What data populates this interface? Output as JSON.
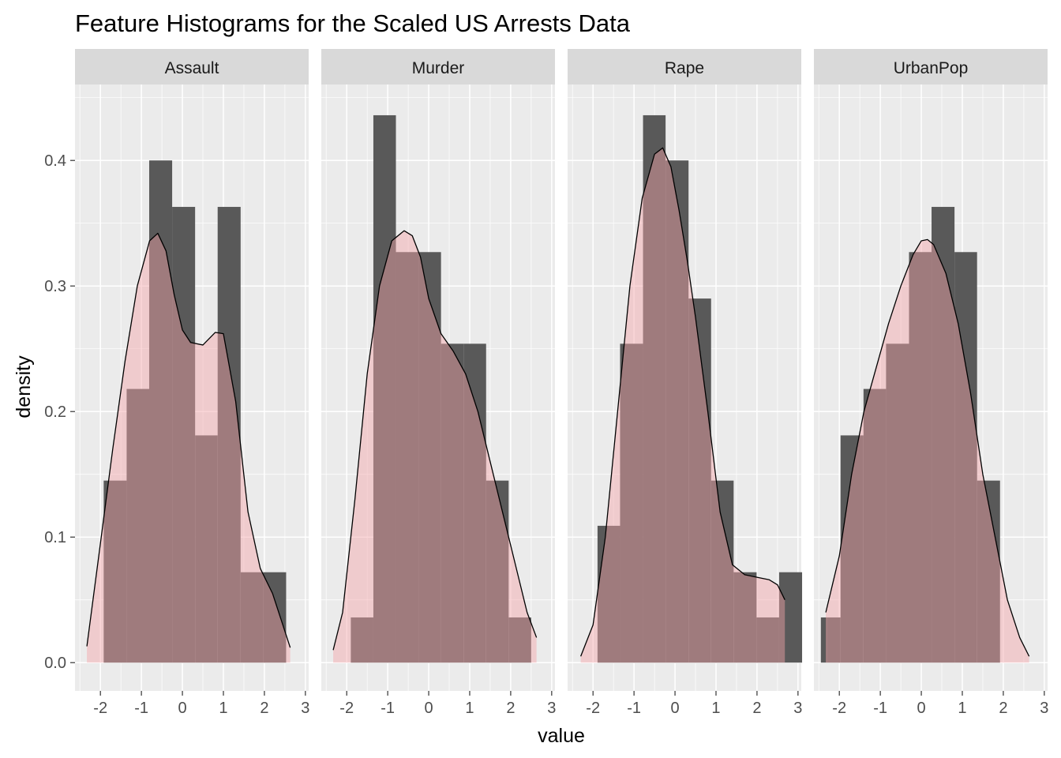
{
  "chart_data": {
    "type": "histogram",
    "title": "Feature Histograms for the Scaled US Arrests Data",
    "xlabel": "value",
    "ylabel": "density",
    "xlim": [
      -2.62,
      3.08
    ],
    "ylim": [
      -0.0225,
      0.4605
    ],
    "x_ticks": [
      -2,
      -1,
      0,
      1,
      2,
      3
    ],
    "x_tick_labels": [
      "-2",
      "-1",
      "0",
      "1",
      "2",
      "3"
    ],
    "y_ticks": [
      0.0,
      0.1,
      0.2,
      0.3,
      0.4
    ],
    "y_tick_labels": [
      "0.0",
      "0.1",
      "0.2",
      "0.3",
      "0.4"
    ],
    "grid": true,
    "histogram_fill": "#595959",
    "density_fill": "#f4a3a8",
    "density_fill_opacity": 0.45,
    "density_line_color": "#000000",
    "panel_background": "#ebebeb",
    "strip_background": "#d9d9d9",
    "panels": [
      {
        "name": "Assault",
        "bins": [
          {
            "x0": -1.92,
            "x1": -1.36,
            "density": 0.145
          },
          {
            "x0": -1.36,
            "x1": -0.81,
            "density": 0.218
          },
          {
            "x0": -0.81,
            "x1": -0.25,
            "density": 0.4
          },
          {
            "x0": -0.25,
            "x1": 0.31,
            "density": 0.363
          },
          {
            "x0": 0.31,
            "x1": 0.86,
            "density": 0.181
          },
          {
            "x0": 0.86,
            "x1": 1.42,
            "density": 0.363
          },
          {
            "x0": 1.42,
            "x1": 1.98,
            "density": 0.072
          },
          {
            "x0": 1.98,
            "x1": 2.53,
            "density": 0.072
          }
        ],
        "density_x": [
          -2.33,
          -2.0,
          -1.7,
          -1.4,
          -1.1,
          -0.8,
          -0.6,
          -0.4,
          -0.2,
          0.0,
          0.2,
          0.5,
          0.8,
          1.0,
          1.3,
          1.6,
          1.9,
          2.2,
          2.5,
          2.63
        ],
        "density_y": [
          0.013,
          0.095,
          0.17,
          0.24,
          0.3,
          0.336,
          0.342,
          0.328,
          0.293,
          0.265,
          0.255,
          0.253,
          0.263,
          0.262,
          0.208,
          0.12,
          0.075,
          0.055,
          0.025,
          0.012
        ]
      },
      {
        "name": "Murder",
        "bins": [
          {
            "x0": -1.9,
            "x1": -1.35,
            "density": 0.036
          },
          {
            "x0": -1.35,
            "x1": -0.8,
            "density": 0.436
          },
          {
            "x0": -0.8,
            "x1": -0.25,
            "density": 0.327
          },
          {
            "x0": -0.25,
            "x1": 0.3,
            "density": 0.327
          },
          {
            "x0": 0.3,
            "x1": 0.85,
            "density": 0.254
          },
          {
            "x0": 0.85,
            "x1": 1.4,
            "density": 0.254
          },
          {
            "x0": 1.4,
            "x1": 1.95,
            "density": 0.145
          },
          {
            "x0": 1.95,
            "x1": 2.5,
            "density": 0.036
          }
        ],
        "density_x": [
          -2.33,
          -2.1,
          -1.8,
          -1.5,
          -1.2,
          -0.9,
          -0.6,
          -0.4,
          -0.2,
          0.0,
          0.3,
          0.6,
          0.9,
          1.2,
          1.5,
          1.8,
          2.1,
          2.4,
          2.63
        ],
        "density_y": [
          0.01,
          0.04,
          0.13,
          0.23,
          0.3,
          0.336,
          0.344,
          0.34,
          0.323,
          0.29,
          0.262,
          0.248,
          0.23,
          0.2,
          0.16,
          0.12,
          0.08,
          0.04,
          0.02
        ]
      },
      {
        "name": "Rape",
        "bins": [
          {
            "x0": -1.89,
            "x1": -1.34,
            "density": 0.109
          },
          {
            "x0": -1.34,
            "x1": -0.78,
            "density": 0.254
          },
          {
            "x0": -0.78,
            "x1": -0.23,
            "density": 0.436
          },
          {
            "x0": -0.23,
            "x1": 0.33,
            "density": 0.4
          },
          {
            "x0": 0.33,
            "x1": 0.88,
            "density": 0.29
          },
          {
            "x0": 0.88,
            "x1": 1.43,
            "density": 0.145
          },
          {
            "x0": 1.43,
            "x1": 1.99,
            "density": 0.072
          },
          {
            "x0": 1.99,
            "x1": 2.54,
            "density": 0.036
          },
          {
            "x0": 2.54,
            "x1": 3.1,
            "density": 0.072
          }
        ],
        "density_x": [
          -2.3,
          -2.0,
          -1.7,
          -1.4,
          -1.1,
          -0.8,
          -0.5,
          -0.3,
          -0.1,
          0.1,
          0.3,
          0.5,
          0.8,
          1.1,
          1.4,
          1.7,
          2.0,
          2.3,
          2.5,
          2.68
        ],
        "density_y": [
          0.005,
          0.03,
          0.1,
          0.2,
          0.3,
          0.37,
          0.405,
          0.41,
          0.395,
          0.36,
          0.32,
          0.275,
          0.2,
          0.12,
          0.078,
          0.07,
          0.068,
          0.066,
          0.062,
          0.05
        ]
      },
      {
        "name": "UrbanPop",
        "bins": [
          {
            "x0": -2.45,
            "x1": -2.3,
            "density": 0.036
          },
          {
            "x0": -2.3,
            "x1": -1.97,
            "density": 0.036
          },
          {
            "x0": -1.97,
            "x1": -1.41,
            "density": 0.181
          },
          {
            "x0": -1.41,
            "x1": -0.86,
            "density": 0.218
          },
          {
            "x0": -0.86,
            "x1": -0.3,
            "density": 0.254
          },
          {
            "x0": -0.3,
            "x1": 0.25,
            "density": 0.327
          },
          {
            "x0": 0.25,
            "x1": 0.81,
            "density": 0.363
          },
          {
            "x0": 0.81,
            "x1": 1.36,
            "density": 0.327
          },
          {
            "x0": 1.36,
            "x1": 1.92,
            "density": 0.145
          }
        ],
        "density_x": [
          -2.33,
          -2.0,
          -1.7,
          -1.4,
          -1.1,
          -0.8,
          -0.5,
          -0.2,
          0.0,
          0.15,
          0.3,
          0.6,
          0.9,
          1.2,
          1.5,
          1.8,
          2.1,
          2.4,
          2.63
        ],
        "density_y": [
          0.04,
          0.085,
          0.15,
          0.2,
          0.235,
          0.27,
          0.3,
          0.325,
          0.336,
          0.337,
          0.333,
          0.31,
          0.27,
          0.215,
          0.15,
          0.1,
          0.05,
          0.02,
          0.005
        ]
      }
    ]
  }
}
